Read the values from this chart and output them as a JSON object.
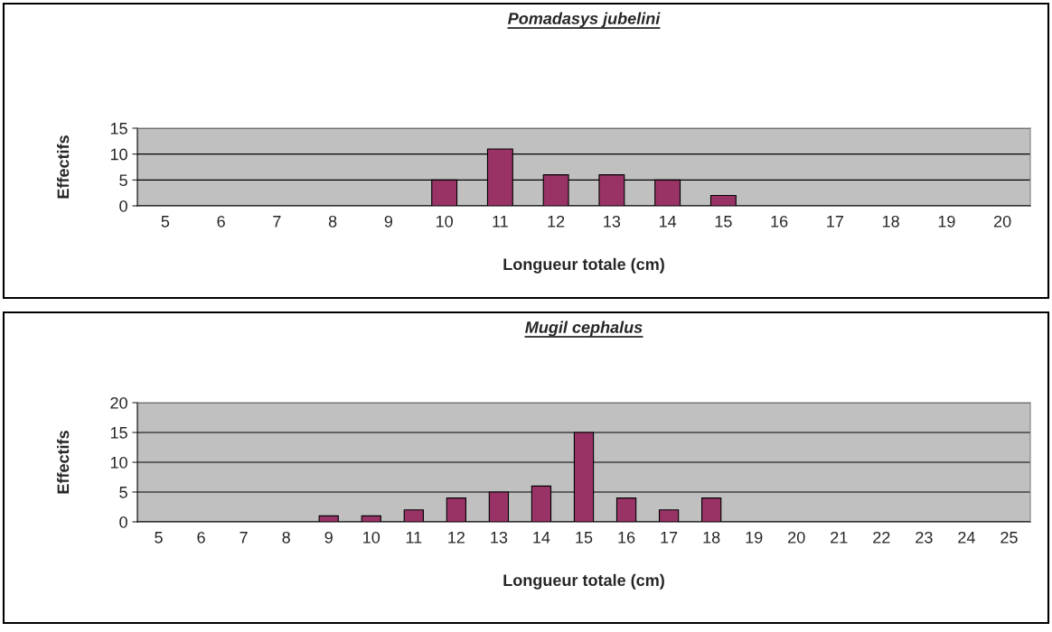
{
  "chart_data": [
    {
      "type": "bar",
      "title": "Pomadasys jubelini",
      "xlabel": "Longueur totale (cm)",
      "ylabel": "Effectifs",
      "categories": [
        "5",
        "6",
        "7",
        "8",
        "9",
        "10",
        "11",
        "12",
        "13",
        "14",
        "15",
        "16",
        "17",
        "18",
        "19",
        "20"
      ],
      "values": [
        0,
        0,
        0,
        0,
        0,
        5,
        11,
        6,
        6,
        5,
        2,
        0,
        0,
        0,
        0,
        0
      ],
      "color": "#993366",
      "ylim": [
        0,
        15
      ],
      "yticks": [
        0,
        5,
        10,
        15
      ],
      "grid": "y",
      "legend": false
    },
    {
      "type": "bar",
      "title": "Mugil cephalus",
      "xlabel": "Longueur totale (cm)",
      "ylabel": "Effectifs",
      "categories": [
        "5",
        "6",
        "7",
        "8",
        "9",
        "10",
        "11",
        "12",
        "13",
        "14",
        "15",
        "16",
        "17",
        "18",
        "19",
        "20",
        "21",
        "22",
        "23",
        "24",
        "25"
      ],
      "values": [
        0,
        0,
        0,
        0,
        1,
        1,
        2,
        4,
        5,
        6,
        15,
        4,
        2,
        4,
        0,
        0,
        0,
        0,
        0,
        0,
        0
      ],
      "color": "#993366",
      "ylim": [
        0,
        20
      ],
      "yticks": [
        0,
        5,
        10,
        15,
        20
      ],
      "grid": "y",
      "legend": false
    }
  ]
}
